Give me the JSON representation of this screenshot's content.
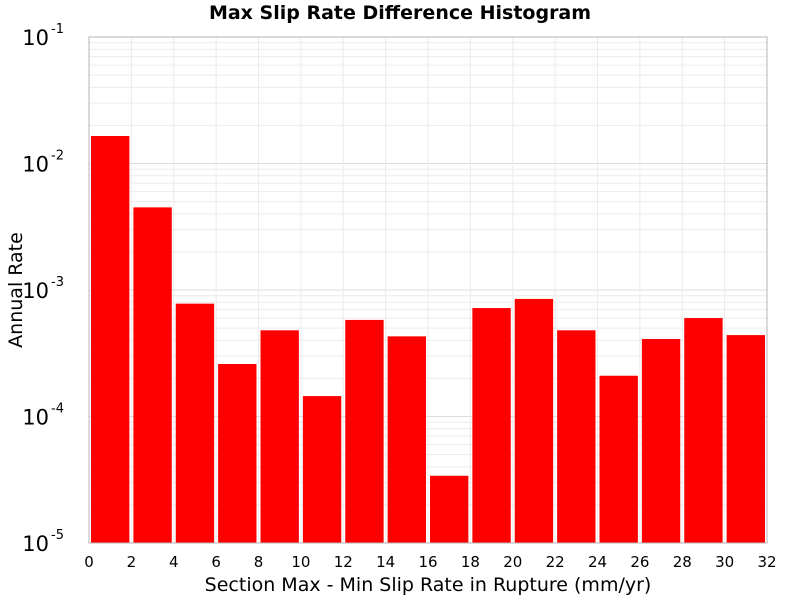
{
  "chart_data": {
    "type": "bar",
    "title": "Max Slip Rate Difference Histogram",
    "xlabel": "Section Max - Min Slip Rate in Rupture (mm/yr)",
    "ylabel": "Annual Rate",
    "xlim": [
      0,
      32
    ],
    "ylim": [
      1e-05,
      0.1
    ],
    "yscale": "log",
    "x_ticks": [
      "0",
      "2",
      "4",
      "6",
      "8",
      "10",
      "12",
      "14",
      "16",
      "18",
      "20",
      "22",
      "24",
      "26",
      "28",
      "30",
      "32"
    ],
    "y_ticks": [
      {
        "base": "10",
        "exp": "-5",
        "value": 1e-05
      },
      {
        "base": "10",
        "exp": "-4",
        "value": 0.0001
      },
      {
        "base": "10",
        "exp": "-3",
        "value": 0.001
      },
      {
        "base": "10",
        "exp": "-2",
        "value": 0.01
      },
      {
        "base": "10",
        "exp": "-1",
        "value": 0.1
      }
    ],
    "bar_color": "#ff0000",
    "grid": true,
    "bars": [
      {
        "x": 1,
        "value": 0.0165
      },
      {
        "x": 3,
        "value": 0.0045
      },
      {
        "x": 5,
        "value": 0.00078
      },
      {
        "x": 7,
        "value": 0.00026
      },
      {
        "x": 9,
        "value": 0.00048
      },
      {
        "x": 11,
        "value": 0.000145
      },
      {
        "x": 13,
        "value": 0.00058
      },
      {
        "x": 15,
        "value": 0.00043
      },
      {
        "x": 17,
        "value": 3.4e-05
      },
      {
        "x": 19,
        "value": 0.00072
      },
      {
        "x": 21,
        "value": 0.00085
      },
      {
        "x": 23,
        "value": 0.00048
      },
      {
        "x": 25,
        "value": 0.00021
      },
      {
        "x": 27,
        "value": 0.00041
      },
      {
        "x": 29,
        "value": 0.0006
      },
      {
        "x": 31,
        "value": 0.00044
      }
    ]
  }
}
